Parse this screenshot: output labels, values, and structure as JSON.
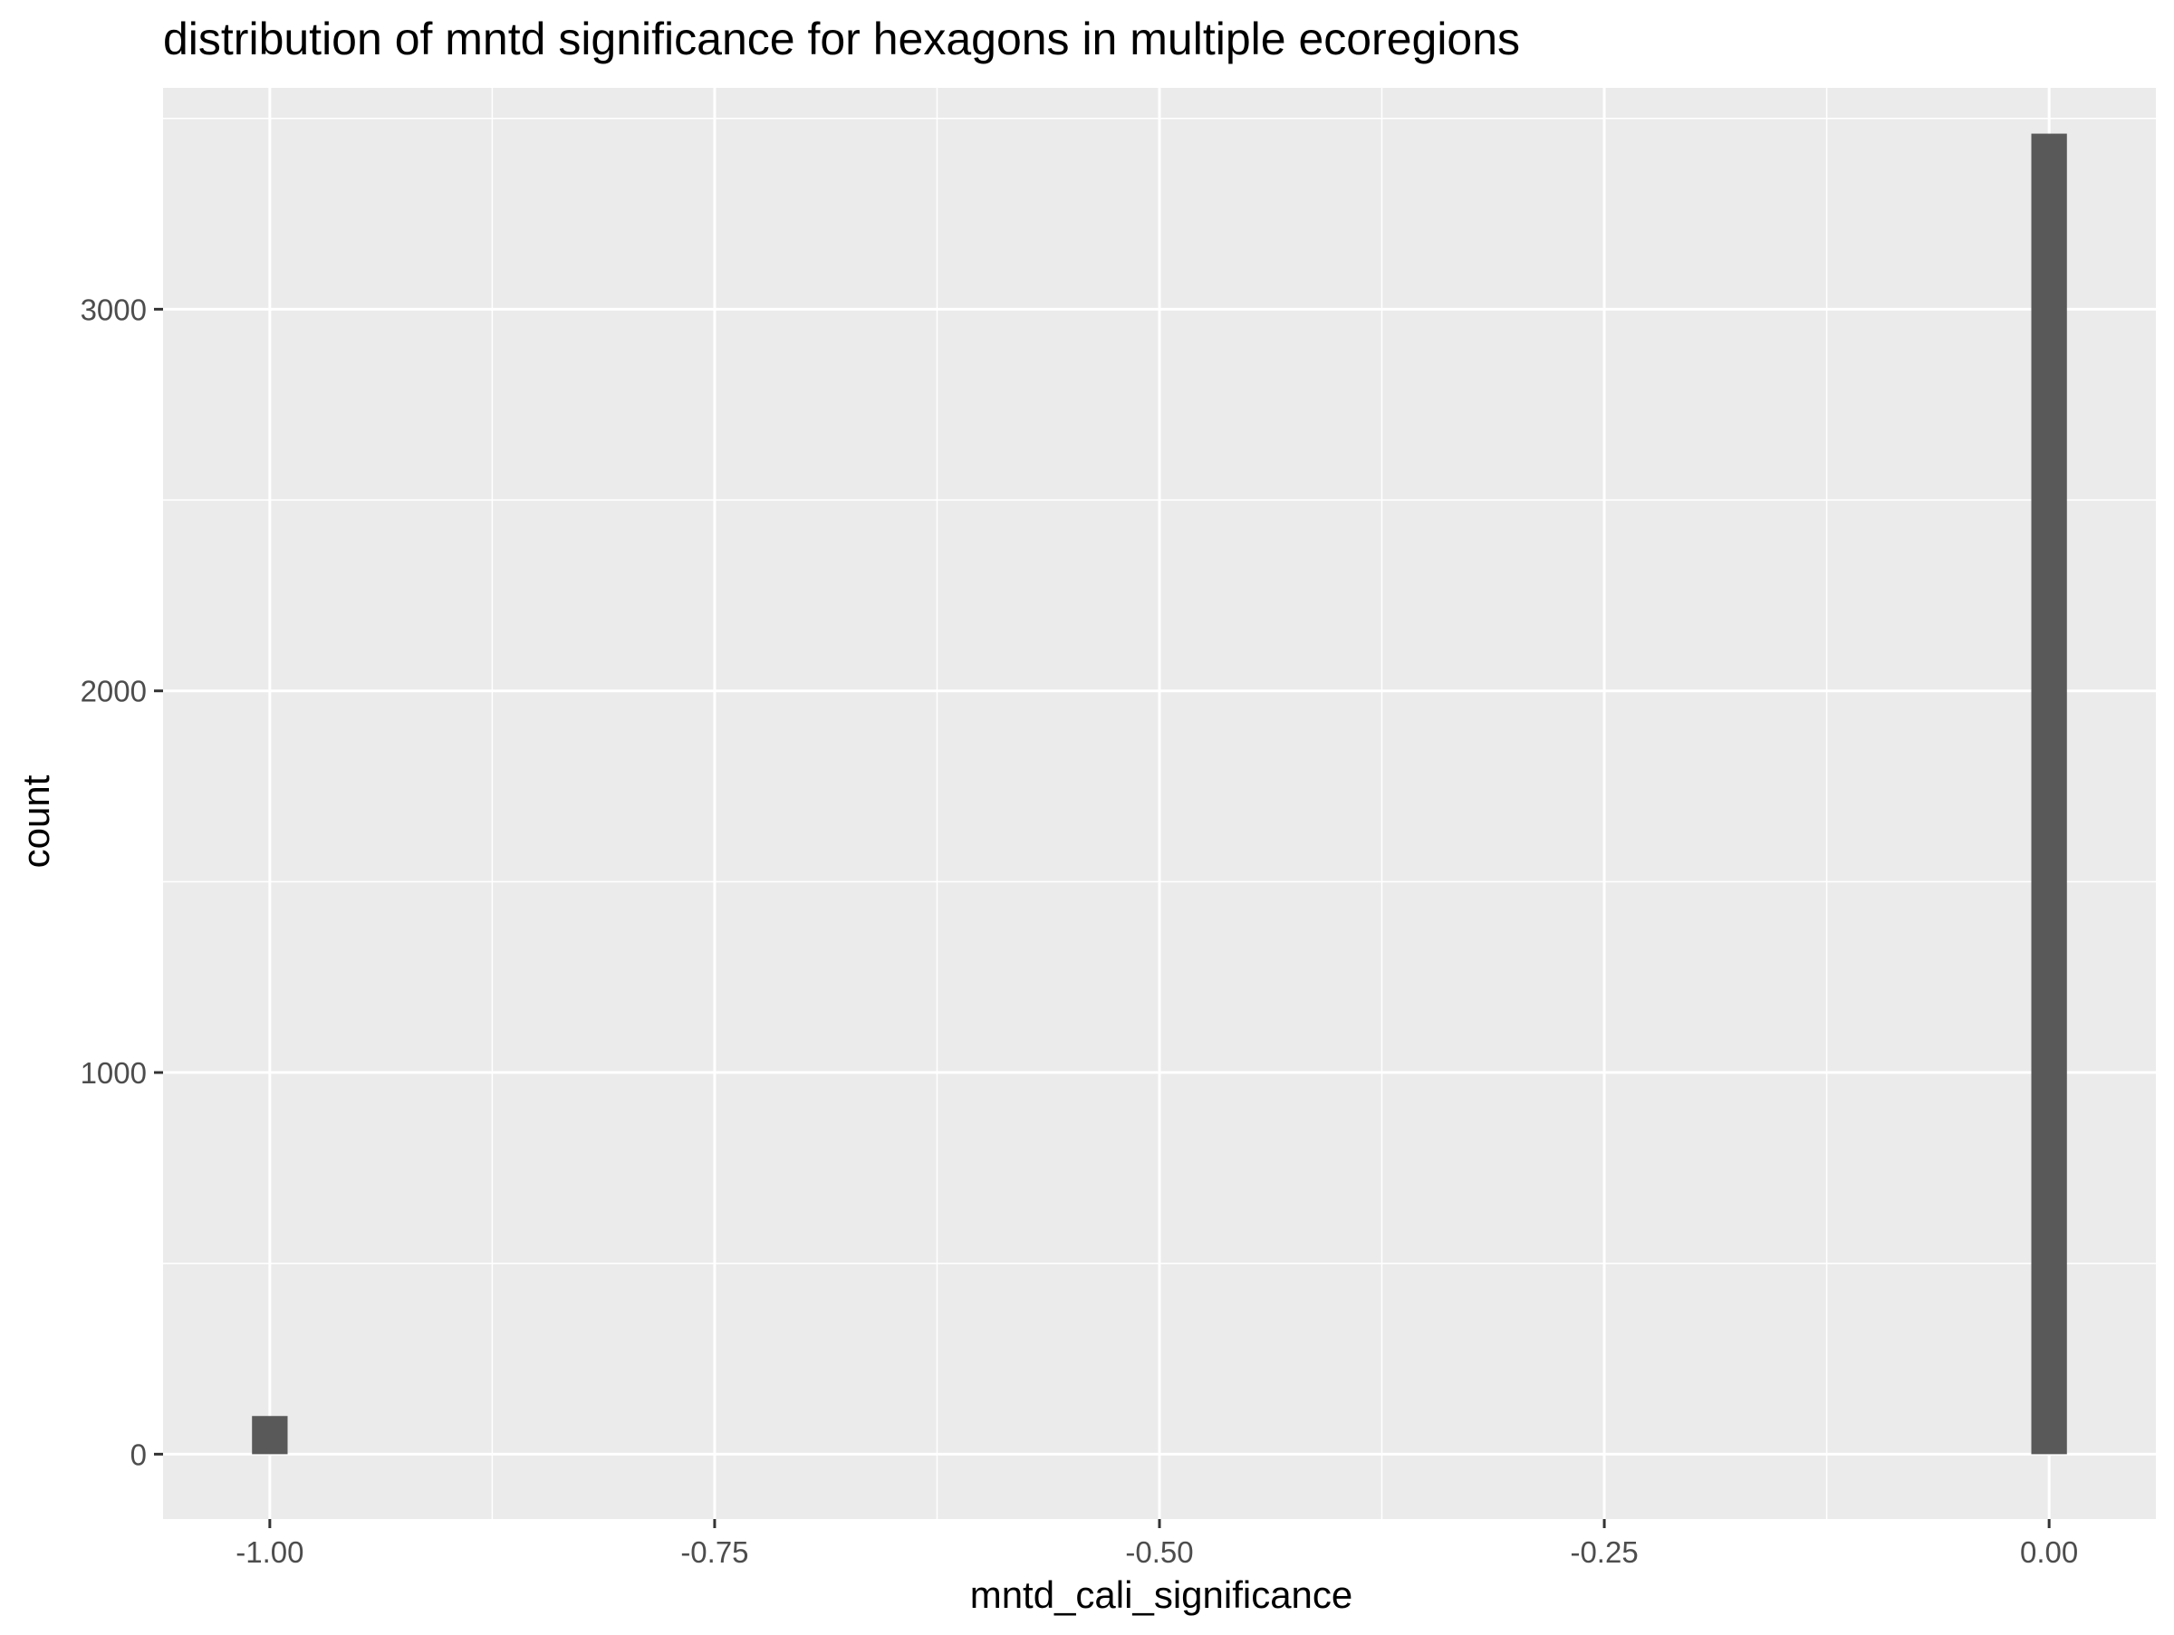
{
  "chart_data": {
    "type": "bar",
    "title": "distribution of mntd significance for hexagons in multiple ecoregions",
    "xlabel": "mntd_cali_significance",
    "ylabel": "count",
    "x_ticks": [
      -1.0,
      -0.75,
      -0.5,
      -0.25,
      0.0
    ],
    "x_tick_labels": [
      "-1.00",
      "-0.75",
      "-0.50",
      "-0.25",
      "0.00"
    ],
    "y_ticks": [
      0,
      1000,
      2000,
      3000
    ],
    "y_tick_labels": [
      "0",
      "1000",
      "2000",
      "3000"
    ],
    "xlim": [
      -1.06,
      0.06
    ],
    "ylim": [
      -170,
      3580
    ],
    "bin_width": 0.02,
    "series": [
      {
        "x": [
          -1.0,
          0.0
        ],
        "values": [
          100,
          3460
        ]
      }
    ],
    "grid": true,
    "colors": {
      "panel_background": "#ebebeb",
      "grid_line": "#ffffff",
      "bar_fill": "#595959",
      "tick_mark": "#333333"
    }
  }
}
